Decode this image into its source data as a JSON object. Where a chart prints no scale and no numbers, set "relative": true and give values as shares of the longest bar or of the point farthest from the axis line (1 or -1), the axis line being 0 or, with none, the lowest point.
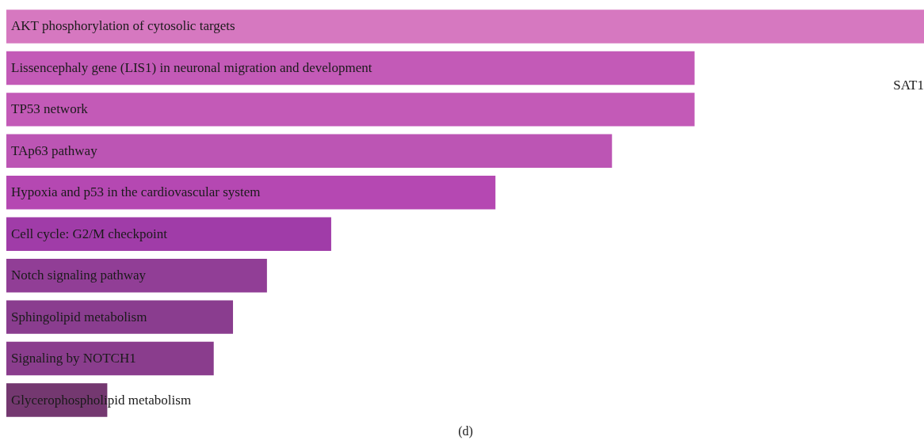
{
  "chart_data": {
    "type": "bar",
    "orientation": "horizontal",
    "relative": true,
    "title": "SAT1",
    "categories": [
      "AKT phosphorylation of cytosolic targets",
      "Lissencephaly gene (LIS1) in neuronal migration and development",
      "TP53 network",
      "TAp63 pathway",
      "Hypoxia and p53 in the cardiovascular system",
      "Cell cycle: G2/M checkpoint",
      "Notch signaling pathway",
      "Sphingolipid metabolism",
      "Signaling by NOTCH1",
      "Glycerophospholipid metabolism"
    ],
    "values": [
      1,
      0.75,
      0.75,
      0.66,
      0.533,
      0.354,
      0.284,
      0.247,
      0.226,
      0.11
    ],
    "colors": [
      "#d678c0",
      "#c35ab7",
      "#c35ab7",
      "#bc55b4",
      "#b548b2",
      "#a03ca8",
      "#913e96",
      "#8a3d8f",
      "#8a3d8d",
      "#743870"
    ],
    "annotations": [
      "(d)"
    ]
  }
}
